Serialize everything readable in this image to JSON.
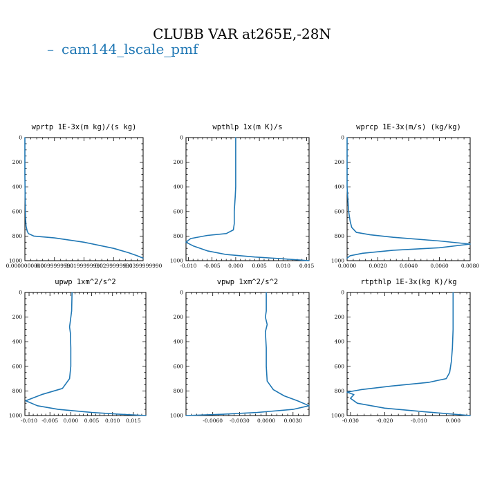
{
  "title": "CLUBB VAR at265E,-28N",
  "legend": {
    "label": "cam144_lscale_pmf",
    "dash": "–"
  },
  "colors": {
    "series": "#1f77b4",
    "axis": "#000000"
  },
  "chart_data": [
    {
      "type": "line",
      "title": "wprtp  1E-3x(m kg)/(s kg)",
      "xlim": [
        0.0,
        0.04
      ],
      "ylim": [
        1000,
        0
      ],
      "xticks": [
        0.0,
        0.01,
        0.02,
        0.03,
        0.04
      ],
      "xtick_labels": [
        "0.0000000000",
        "0.0099999990",
        "0.0199999990",
        "0.0299999990",
        "0.0399999990"
      ],
      "yticks": [
        0,
        200,
        400,
        600,
        800,
        1000
      ],
      "ytick_labels": [
        "0",
        "200",
        "400",
        "600",
        "800",
        "1000"
      ],
      "series": [
        {
          "name": "cam144_lscale_pmf",
          "x": [
            0.0,
            0.0,
            0.0001,
            0.0002,
            0.0004,
            0.0008,
            0.0012,
            0.003,
            0.01,
            0.02,
            0.03,
            0.035,
            0.038,
            0.04
          ],
          "y": [
            0,
            300,
            500,
            650,
            720,
            760,
            780,
            800,
            815,
            850,
            900,
            935,
            960,
            980
          ]
        }
      ]
    },
    {
      "type": "line",
      "title": "wpthlp  1x(m K)/s",
      "xlim": [
        -0.0105,
        0.0155
      ],
      "ylim": [
        1000,
        0
      ],
      "xticks": [
        -0.01,
        -0.005,
        0.0,
        0.005,
        0.01,
        0.015
      ],
      "xtick_labels": [
        "-0.010",
        "-0.005",
        "0.000",
        "0.005",
        "0.010",
        "0.015"
      ],
      "yticks": [
        0,
        200,
        400,
        600,
        800,
        1000
      ],
      "ytick_labels": [
        "0",
        "200",
        "400",
        "600",
        "800",
        "1000"
      ],
      "series": [
        {
          "name": "cam144_lscale_pmf",
          "x": [
            0.0,
            0.0,
            -0.0001,
            -0.0003,
            -0.0003,
            -0.0005,
            -0.002,
            -0.006,
            -0.0095,
            -0.0105,
            -0.009,
            -0.006,
            -0.002,
            0.004,
            0.01,
            0.0155
          ],
          "y": [
            0,
            400,
            480,
            600,
            700,
            750,
            780,
            795,
            820,
            850,
            880,
            920,
            950,
            970,
            985,
            1000
          ]
        }
      ]
    },
    {
      "type": "line",
      "title": "wprcp  1E-3x(m/s) (kg/kg)",
      "xlim": [
        0.0,
        0.008
      ],
      "ylim": [
        1000,
        0
      ],
      "xticks": [
        0.0,
        0.002,
        0.004,
        0.006,
        0.008
      ],
      "xtick_labels": [
        "0.0000",
        "0.0020",
        "0.0040",
        "0.0060",
        "0.0080"
      ],
      "yticks": [
        0,
        200,
        400,
        600,
        800,
        1000
      ],
      "ytick_labels": [
        "0",
        "200",
        "400",
        "600",
        "800",
        "1000"
      ],
      "series": [
        {
          "name": "cam144_lscale_pmf",
          "x": [
            0.0,
            0.0,
            5e-05,
            0.0001,
            0.0002,
            0.0003,
            0.0006,
            0.0015,
            0.003,
            0.006,
            0.008,
            0.006,
            0.003,
            0.001,
            0.0002,
            0.0
          ],
          "y": [
            0,
            400,
            500,
            600,
            680,
            730,
            770,
            790,
            810,
            840,
            865,
            895,
            915,
            940,
            960,
            980
          ]
        }
      ]
    },
    {
      "type": "line",
      "title": "upwp  1xm^2/s^2",
      "xlim": [
        -0.011,
        0.018
      ],
      "ylim": [
        1000,
        0
      ],
      "xticks": [
        -0.01,
        -0.005,
        0.0,
        0.005,
        0.01,
        0.015
      ],
      "xtick_labels": [
        "-0.010",
        "-0.005",
        "0.000",
        "0.005",
        "0.010",
        "0.015"
      ],
      "yticks": [
        0,
        200,
        400,
        600,
        800,
        1000
      ],
      "ytick_labels": [
        "0",
        "200",
        "400",
        "600",
        "800",
        "1000"
      ],
      "series": [
        {
          "name": "cam144_lscale_pmf",
          "x": [
            0.0003,
            0.0002,
            -0.0001,
            -0.0003,
            -0.0001,
            0.0,
            0.0,
            -0.0003,
            -0.002,
            -0.007,
            -0.0108,
            -0.008,
            -0.003,
            0.005,
            0.012,
            0.018
          ],
          "y": [
            0,
            150,
            230,
            280,
            330,
            450,
            600,
            700,
            780,
            830,
            880,
            920,
            950,
            975,
            990,
            1000
          ]
        }
      ]
    },
    {
      "type": "line",
      "title": "vpwp  1xm^2/s^2",
      "xlim": [
        -0.009,
        0.0048
      ],
      "ylim": [
        1000,
        0
      ],
      "xticks": [
        -0.006,
        -0.003,
        0.0,
        0.003
      ],
      "xtick_labels": [
        "-0.0060",
        "-0.0030",
        "0.0000",
        "0.0030"
      ],
      "yticks": [
        0,
        200,
        400,
        600,
        800,
        1000
      ],
      "ytick_labels": [
        "0",
        "200",
        "400",
        "600",
        "800",
        "1000"
      ],
      "series": [
        {
          "name": "cam144_lscale_pmf",
          "x": [
            0.0,
            0.0,
            -0.0001,
            0.0001,
            -0.0001,
            0.0,
            0.0,
            0.0001,
            0.0008,
            0.002,
            0.0035,
            0.0048,
            0.003,
            -0.001,
            -0.005,
            -0.009
          ],
          "y": [
            0,
            150,
            200,
            260,
            320,
            450,
            600,
            720,
            790,
            840,
            880,
            920,
            950,
            975,
            990,
            1000
          ]
        }
      ]
    },
    {
      "type": "line",
      "title": "rtpthlp  1E-3x(kg K)/kg",
      "xlim": [
        -0.031,
        0.005
      ],
      "ylim": [
        1000,
        0
      ],
      "xticks": [
        -0.03,
        -0.02,
        -0.01,
        0.0
      ],
      "xtick_labels": [
        "-0.030",
        "-0.020",
        "-0.010",
        "0.000"
      ],
      "yticks": [
        0,
        200,
        400,
        600,
        800,
        1000
      ],
      "ytick_labels": [
        "0",
        "200",
        "400",
        "600",
        "800",
        "1000"
      ],
      "series": [
        {
          "name": "cam144_lscale_pmf",
          "x": [
            0.0,
            0.0,
            -0.0002,
            -0.0005,
            -0.001,
            -0.002,
            -0.007,
            -0.018,
            -0.027,
            -0.031,
            -0.029,
            -0.03,
            -0.028,
            -0.02,
            -0.008,
            0.005
          ],
          "y": [
            0,
            300,
            450,
            560,
            650,
            700,
            730,
            760,
            790,
            810,
            830,
            860,
            900,
            940,
            970,
            1000
          ]
        }
      ]
    }
  ]
}
